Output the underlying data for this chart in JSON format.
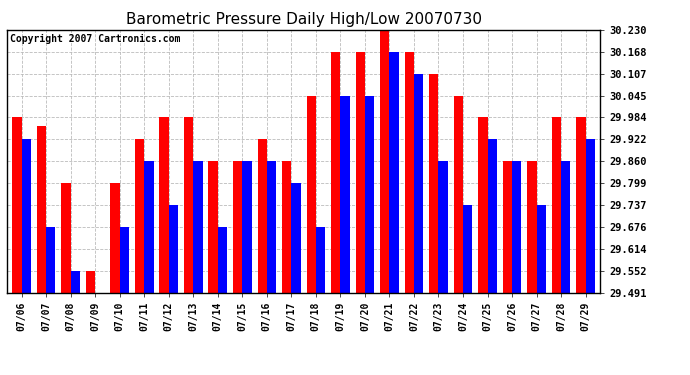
{
  "title": "Barometric Pressure Daily High/Low 20070730",
  "copyright": "Copyright 2007 Cartronics.com",
  "dates": [
    "07/06",
    "07/07",
    "07/08",
    "07/09",
    "07/10",
    "07/11",
    "07/12",
    "07/13",
    "07/14",
    "07/15",
    "07/16",
    "07/17",
    "07/18",
    "07/19",
    "07/20",
    "07/21",
    "07/22",
    "07/23",
    "07/24",
    "07/25",
    "07/26",
    "07/27",
    "07/28",
    "07/29"
  ],
  "highs": [
    29.984,
    29.96,
    29.8,
    29.552,
    29.8,
    29.922,
    29.984,
    29.984,
    29.86,
    29.86,
    29.922,
    29.86,
    30.045,
    30.168,
    30.168,
    30.23,
    30.168,
    30.107,
    30.045,
    29.984,
    29.86,
    29.86,
    29.984,
    29.984
  ],
  "lows": [
    29.922,
    29.676,
    29.552,
    29.491,
    29.676,
    29.86,
    29.737,
    29.86,
    29.676,
    29.86,
    29.86,
    29.799,
    29.676,
    30.045,
    30.045,
    30.168,
    30.107,
    29.86,
    29.737,
    29.922,
    29.86,
    29.737,
    29.86,
    29.922
  ],
  "ylim_min": 29.491,
  "ylim_max": 30.23,
  "yticks": [
    29.491,
    29.552,
    29.614,
    29.676,
    29.737,
    29.799,
    29.86,
    29.922,
    29.984,
    30.045,
    30.107,
    30.168,
    30.23
  ],
  "bar_width": 0.38,
  "high_color": "#ff0000",
  "low_color": "#0000ff",
  "bg_color": "#ffffff",
  "grid_color": "#bbbbbb",
  "title_fontsize": 11,
  "copyright_fontsize": 7
}
